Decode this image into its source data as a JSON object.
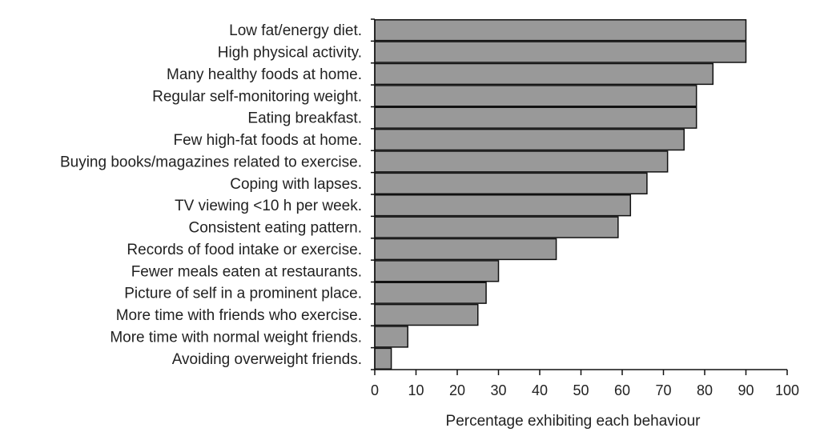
{
  "chart_data": {
    "type": "bar",
    "orientation": "horizontal",
    "title": "",
    "xlabel": "Percentage exhibiting each behaviour",
    "ylabel": "",
    "xlim": [
      0,
      100
    ],
    "xticks": [
      0,
      10,
      20,
      30,
      40,
      50,
      60,
      70,
      80,
      90,
      100
    ],
    "grid": false,
    "bar_color": "#999999",
    "categories": [
      "Low fat/energy diet.",
      "High physical activity.",
      "Many healthy foods at home.",
      "Regular self-monitoring weight.",
      "Eating breakfast.",
      "Few high-fat foods at home.",
      "Buying books/magazines related to exercise.",
      "Coping with lapses.",
      "TV viewing <10 h per week.",
      "Consistent eating pattern.",
      "Records of food intake or exercise.",
      "Fewer meals eaten at restaurants.",
      "Picture of self in a prominent place.",
      "More time with friends who exercise.",
      "More time with normal weight friends.",
      "Avoiding overweight friends."
    ],
    "values": [
      90,
      90,
      82,
      78,
      78,
      75,
      71,
      66,
      62,
      59,
      44,
      30,
      27,
      25,
      8,
      4
    ]
  }
}
